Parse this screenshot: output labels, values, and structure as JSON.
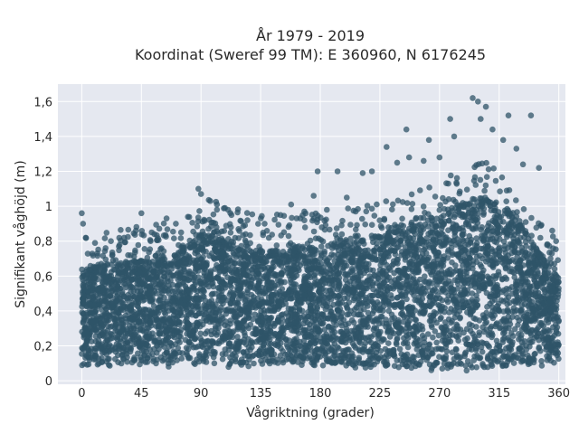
{
  "chart_data": {
    "type": "scatter",
    "title_line1": "År 1979 - 2019",
    "title_line2": "Koordinat (Sweref 99 TM): E 360960, N 6176245",
    "xlabel": "Vågriktning (grader)",
    "ylabel": "Signifikant våghöjd (m)",
    "xlim": [
      -18,
      365
    ],
    "ylim": [
      -0.02,
      1.7
    ],
    "xticks": [
      0,
      45,
      90,
      135,
      180,
      225,
      270,
      315,
      360
    ],
    "xtick_labels": [
      "0",
      "45",
      "90",
      "135",
      "180",
      "225",
      "270",
      "315",
      "360"
    ],
    "yticks": [
      0,
      0.2,
      0.4,
      0.6,
      0.8,
      1.0,
      1.2,
      1.4,
      1.6
    ],
    "ytick_labels": [
      "0",
      "0,2",
      "0,4",
      "0,6",
      "0,8",
      "1",
      "1,2",
      "1,4",
      "1,6"
    ],
    "grid": true,
    "colors": {
      "marker": "#2f5468",
      "plot_bg": "#e5e8f0",
      "grid": "#ffffff"
    },
    "envelope": {
      "direction_deg": [
        0,
        20,
        45,
        70,
        90,
        110,
        135,
        160,
        180,
        200,
        225,
        250,
        270,
        290,
        300,
        315,
        330,
        345,
        360
      ],
      "upper_dense_m": [
        0.62,
        0.66,
        0.68,
        0.7,
        0.83,
        0.8,
        0.74,
        0.74,
        0.75,
        0.78,
        0.82,
        0.88,
        0.93,
        1.02,
        1.05,
        1.0,
        0.9,
        0.72,
        0.58
      ],
      "lower_m": [
        0.09,
        0.09,
        0.09,
        0.09,
        0.09,
        0.09,
        0.09,
        0.09,
        0.08,
        0.08,
        0.08,
        0.07,
        0.06,
        0.06,
        0.06,
        0.07,
        0.08,
        0.09,
        0.09
      ]
    },
    "outliers": [
      {
        "x": 0,
        "y": 0.96
      },
      {
        "x": 1,
        "y": 0.9
      },
      {
        "x": 10,
        "y": 0.79
      },
      {
        "x": 18,
        "y": 0.76
      },
      {
        "x": 22,
        "y": 0.8
      },
      {
        "x": 28,
        "y": 0.77
      },
      {
        "x": 35,
        "y": 0.72
      },
      {
        "x": 45,
        "y": 0.96
      },
      {
        "x": 52,
        "y": 0.8
      },
      {
        "x": 64,
        "y": 0.93
      },
      {
        "x": 75,
        "y": 0.85
      },
      {
        "x": 88,
        "y": 1.1
      },
      {
        "x": 90,
        "y": 1.07
      },
      {
        "x": 97,
        "y": 1.03
      },
      {
        "x": 102,
        "y": 1.01
      },
      {
        "x": 108,
        "y": 0.99
      },
      {
        "x": 113,
        "y": 0.95
      },
      {
        "x": 125,
        "y": 0.92
      },
      {
        "x": 138,
        "y": 0.9
      },
      {
        "x": 150,
        "y": 0.95
      },
      {
        "x": 158,
        "y": 1.01
      },
      {
        "x": 168,
        "y": 0.97
      },
      {
        "x": 175,
        "y": 1.06
      },
      {
        "x": 178,
        "y": 1.2
      },
      {
        "x": 185,
        "y": 0.98
      },
      {
        "x": 193,
        "y": 1.2
      },
      {
        "x": 200,
        "y": 1.05
      },
      {
        "x": 212,
        "y": 1.19
      },
      {
        "x": 219,
        "y": 1.2
      },
      {
        "x": 230,
        "y": 1.34
      },
      {
        "x": 238,
        "y": 1.25
      },
      {
        "x": 245,
        "y": 1.44
      },
      {
        "x": 247,
        "y": 1.28
      },
      {
        "x": 258,
        "y": 1.26
      },
      {
        "x": 262,
        "y": 1.38
      },
      {
        "x": 270,
        "y": 1.28
      },
      {
        "x": 278,
        "y": 1.5
      },
      {
        "x": 281,
        "y": 1.4
      },
      {
        "x": 295,
        "y": 1.62
      },
      {
        "x": 299,
        "y": 1.6
      },
      {
        "x": 301,
        "y": 1.5
      },
      {
        "x": 305,
        "y": 1.57
      },
      {
        "x": 310,
        "y": 1.44
      },
      {
        "x": 318,
        "y": 1.38
      },
      {
        "x": 322,
        "y": 1.52
      },
      {
        "x": 328,
        "y": 1.33
      },
      {
        "x": 333,
        "y": 1.24
      },
      {
        "x": 339,
        "y": 1.52
      },
      {
        "x": 345,
        "y": 1.22
      },
      {
        "x": 355,
        "y": 0.86
      },
      {
        "x": 358,
        "y": 0.8
      }
    ]
  }
}
